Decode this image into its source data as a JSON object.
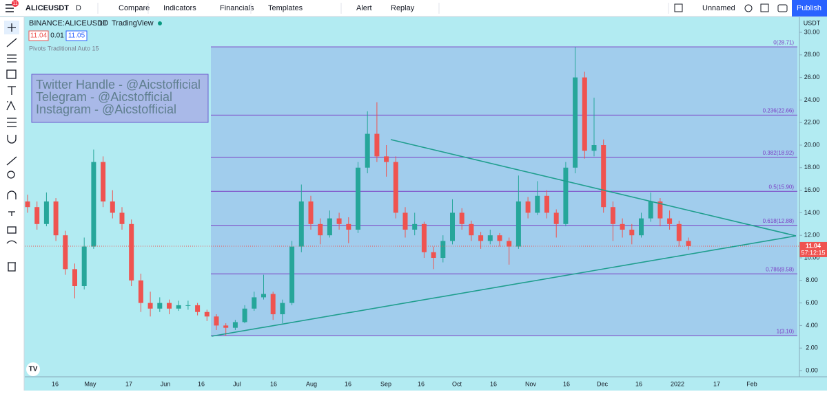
{
  "toolbar": {
    "badge": 11,
    "symbol": "ALICEUSDT",
    "interval": "D",
    "items": [
      "Compare",
      "Indicators",
      "Financials",
      "Templates",
      "Alert",
      "Replay"
    ],
    "layout_name": "Unnamed",
    "publish": "Publish"
  },
  "legend": {
    "symbol": "BINANCE:ALICEUSDT",
    "interval": "1D",
    "source": "TradingView",
    "bid": 11.04,
    "spread": 0.01,
    "ask": 11.05,
    "indicator": "Pivots Traditional Auto 15"
  },
  "annotation": [
    "Twitter Handle - @Aicstofficial",
    "Telegram - @Aicstofficial",
    "Instagram - @Aicstofficial"
  ],
  "chart_data": {
    "type": "candlestick",
    "currency": "USDT",
    "ylim": [
      0,
      30
    ],
    "yticks": [
      {
        "value": 0,
        "label": "0.00"
      },
      {
        "value": 2,
        "label": "2.00"
      },
      {
        "value": 4,
        "label": "4.00"
      },
      {
        "value": 6,
        "label": "6.00"
      },
      {
        "value": 8,
        "label": "8.00"
      },
      {
        "value": 10,
        "label": "10.00"
      },
      {
        "value": 12,
        "label": "12.00"
      },
      {
        "value": 14,
        "label": "14.00"
      },
      {
        "value": 16,
        "label": "16.00"
      },
      {
        "value": 18,
        "label": "18.00"
      },
      {
        "value": 20,
        "label": "20.00"
      },
      {
        "value": 22,
        "label": "22.00"
      },
      {
        "value": 24,
        "label": "24.00"
      },
      {
        "value": 26,
        "label": "26.00"
      },
      {
        "value": 28,
        "label": "28.00"
      },
      {
        "value": 30,
        "label": "30.00"
      }
    ],
    "x_labels": [
      "16",
      "May",
      "17",
      "Jun",
      "16",
      "Jul",
      "16",
      "Aug",
      "16",
      "Sep",
      "16",
      "Oct",
      "16",
      "Nov",
      "16",
      "Dec",
      "16",
      "2022",
      "17",
      "Feb"
    ],
    "candles": [
      [
        15,
        15.6,
        14,
        14.5
      ],
      [
        14.5,
        15,
        12.5,
        13
      ],
      [
        13,
        15.8,
        12.8,
        15
      ],
      [
        15,
        15.3,
        11.5,
        12
      ],
      [
        12,
        12.4,
        8.5,
        9
      ],
      [
        9,
        9.5,
        6.4,
        7.5
      ],
      [
        7.5,
        11.8,
        7.2,
        11
      ],
      [
        11,
        19.6,
        10.8,
        18.5
      ],
      [
        18.5,
        19,
        14.5,
        15
      ],
      [
        15,
        16,
        13.5,
        14
      ],
      [
        14,
        14.5,
        12.5,
        13
      ],
      [
        13,
        13.4,
        7.5,
        8
      ],
      [
        8,
        8.6,
        5.2,
        6
      ],
      [
        6,
        7,
        4.8,
        5.5
      ],
      [
        5.5,
        6.5,
        5.2,
        6
      ],
      [
        6,
        6.3,
        5,
        5.5
      ],
      [
        5.5,
        6.2,
        5.3,
        5.8
      ],
      [
        5.8,
        6.2,
        5.4,
        5.8
      ],
      [
        5.8,
        6,
        4.9,
        5.2
      ],
      [
        5.2,
        5.4,
        4.4,
        4.8
      ],
      [
        4.8,
        5,
        3.6,
        4
      ],
      [
        4,
        4.2,
        3.1,
        3.8
      ],
      [
        3.8,
        4.5,
        3.6,
        4.3
      ],
      [
        4.3,
        5.8,
        4.2,
        5.5
      ],
      [
        5.5,
        7,
        5.3,
        6.5
      ],
      [
        6.5,
        8.5,
        6.3,
        6.8
      ],
      [
        6.8,
        7,
        4.5,
        5
      ],
      [
        5,
        6.3,
        4.2,
        6
      ],
      [
        6,
        11.5,
        5.8,
        11
      ],
      [
        11,
        16.5,
        10.5,
        15
      ],
      [
        15,
        15.5,
        12.5,
        13
      ],
      [
        13,
        13.5,
        11.2,
        12
      ],
      [
        12,
        14.2,
        11.8,
        13.5
      ],
      [
        13.5,
        14,
        12.5,
        13
      ],
      [
        13,
        13.6,
        11.3,
        12.5
      ],
      [
        12.5,
        18.5,
        12.2,
        18
      ],
      [
        18,
        23,
        17.5,
        21
      ],
      [
        21,
        23.8,
        18.5,
        19
      ],
      [
        19,
        20,
        17.2,
        18.5
      ],
      [
        18.5,
        19,
        13.5,
        14
      ],
      [
        14,
        14.5,
        11.8,
        12.5
      ],
      [
        12.5,
        14,
        12,
        13
      ],
      [
        13,
        13.2,
        10,
        10.5
      ],
      [
        10.5,
        11,
        9,
        10
      ],
      [
        10,
        12,
        9.6,
        11.5
      ],
      [
        11.5,
        15.2,
        11.2,
        14
      ],
      [
        14,
        14.4,
        12.5,
        13
      ],
      [
        13,
        13.3,
        11.5,
        12
      ],
      [
        12,
        12.3,
        10.8,
        11.5
      ],
      [
        11.5,
        12.5,
        11.2,
        12
      ],
      [
        12,
        12.2,
        11,
        11.5
      ],
      [
        11.5,
        11.8,
        9.4,
        11
      ],
      [
        11,
        17.3,
        10.8,
        15
      ],
      [
        15,
        15.4,
        13.5,
        14
      ],
      [
        14,
        16.8,
        13.8,
        15.5
      ],
      [
        15.5,
        16,
        13.5,
        14
      ],
      [
        14,
        14.3,
        11.8,
        13
      ],
      [
        13,
        18.5,
        12.8,
        18
      ],
      [
        18,
        28.7,
        17.5,
        26
      ],
      [
        26,
        26.5,
        18.8,
        19.5
      ],
      [
        19.5,
        24.2,
        19,
        20
      ],
      [
        20,
        20.5,
        14,
        14.5
      ],
      [
        14.5,
        15,
        11.5,
        13
      ],
      [
        13,
        13.5,
        11.8,
        12.5
      ],
      [
        12.5,
        13,
        11.2,
        12
      ],
      [
        12,
        14,
        11.8,
        13.5
      ],
      [
        13.5,
        15.8,
        13.2,
        15
      ],
      [
        15,
        15.3,
        12.8,
        13.5
      ],
      [
        13.5,
        14.2,
        12.5,
        13
      ],
      [
        13,
        13.3,
        11,
        11.5
      ],
      [
        11.5,
        11.8,
        10.7,
        11.04
      ]
    ],
    "fib_levels": [
      {
        "value": 28.71,
        "label": "0(28.71)"
      },
      {
        "value": 22.66,
        "label": "0.236(22.66)"
      },
      {
        "value": 18.92,
        "label": "0.382(18.92)"
      },
      {
        "value": 15.9,
        "label": "0.5(15.90)"
      },
      {
        "value": 12.88,
        "label": "0.618(12.88)"
      },
      {
        "value": 8.58,
        "label": "0.786(8.58)"
      },
      {
        "value": 3.1,
        "label": "1(3.10)"
      }
    ],
    "last_price": 11.04,
    "countdown": "57:12:15",
    "colors": {
      "up": "#26a69a",
      "down": "#ef5350",
      "fib": "#7b3fc4",
      "trend": "#1f9e8e"
    }
  }
}
